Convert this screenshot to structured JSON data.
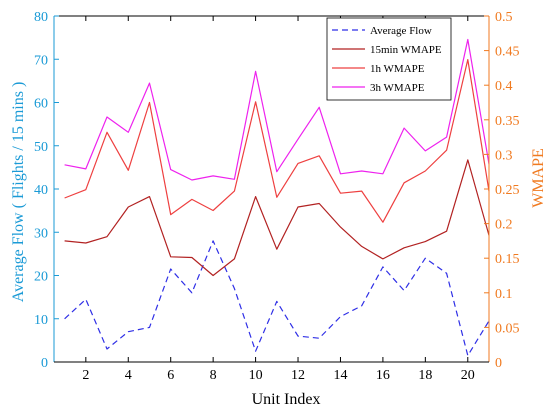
{
  "chart_data": {
    "type": "line",
    "xlabel": "Unit Index",
    "ylabel_left": "Average Flow ( Flights / 15 mins )",
    "ylabel_right": "WMAPE",
    "x": [
      1,
      2,
      3,
      4,
      5,
      6,
      7,
      8,
      9,
      10,
      11,
      12,
      13,
      14,
      15,
      16,
      17,
      18,
      19,
      20,
      21
    ],
    "xlim": [
      0.5,
      21
    ],
    "xticks": [
      "2",
      "4",
      "6",
      "8",
      "10",
      "12",
      "14",
      "16",
      "18",
      "20"
    ],
    "ylim_left": [
      0,
      80
    ],
    "yticks_left": [
      "0",
      "10",
      "20",
      "30",
      "40",
      "50",
      "60",
      "70",
      "80"
    ],
    "ylim_right": [
      0,
      0.5
    ],
    "yticks_right": [
      "0",
      "0.05",
      "0.1",
      "0.15",
      "0.2",
      "0.25",
      "0.3",
      "0.35",
      "0.4",
      "0.45",
      "0.5"
    ],
    "legend_position": "top-right",
    "grid": false,
    "series": [
      {
        "name": "Average Flow",
        "axis": "left",
        "style": "dashed",
        "color": "#2f2fe6",
        "values": [
          10,
          14.5,
          3,
          7,
          8,
          21.5,
          16,
          28,
          17,
          2.5,
          14,
          6,
          5.5,
          10.5,
          13,
          22,
          16.5,
          24,
          20.5,
          1.5,
          9.5
        ]
      },
      {
        "name": "15min WMAPE",
        "axis": "right",
        "style": "solid",
        "color": "#b22222",
        "values": [
          0.175,
          0.172,
          0.181,
          0.224,
          0.239,
          0.152,
          0.151,
          0.125,
          0.149,
          0.239,
          0.163,
          0.224,
          0.229,
          0.195,
          0.167,
          0.149,
          0.165,
          0.174,
          0.189,
          0.292,
          0.183
        ]
      },
      {
        "name": "1h WMAPE",
        "axis": "right",
        "style": "solid",
        "color": "#ee4040",
        "values": [
          0.237,
          0.249,
          0.332,
          0.277,
          0.375,
          0.213,
          0.235,
          0.219,
          0.247,
          0.376,
          0.238,
          0.287,
          0.298,
          0.244,
          0.247,
          0.202,
          0.259,
          0.276,
          0.306,
          0.437,
          0.247
        ]
      },
      {
        "name": "3h WMAPE",
        "axis": "right",
        "style": "solid",
        "color": "#ee22ee",
        "values": [
          0.285,
          0.279,
          0.354,
          0.332,
          0.403,
          0.278,
          0.263,
          0.269,
          0.264,
          0.42,
          0.275,
          0.322,
          0.368,
          0.272,
          0.276,
          0.272,
          0.338,
          0.305,
          0.325,
          0.466,
          0.286
        ]
      }
    ]
  },
  "colors": {
    "left_axis": "#1a9ad6",
    "right_axis": "#f07a20",
    "frame": "#000000"
  }
}
